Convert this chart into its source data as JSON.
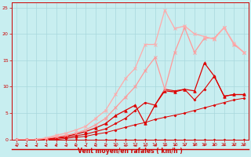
{
  "xlabel": "Vent moyen/en rafales ( km/h )",
  "bg_color": "#c8eef0",
  "grid_color": "#a8d8dc",
  "xlim": [
    -0.5,
    23.5
  ],
  "ylim": [
    0,
    26
  ],
  "xticks": [
    0,
    1,
    2,
    3,
    4,
    5,
    6,
    7,
    8,
    9,
    10,
    11,
    12,
    13,
    14,
    15,
    16,
    17,
    18,
    19,
    20,
    21,
    22,
    23
  ],
  "yticks": [
    0,
    5,
    10,
    15,
    20,
    25
  ],
  "lines": [
    {
      "x": [
        0,
        1,
        2,
        3,
        4,
        5,
        6,
        7,
        8,
        9,
        10,
        11,
        12,
        13,
        14,
        15,
        16,
        17,
        18,
        19,
        20,
        21,
        22,
        23
      ],
      "y": [
        0,
        0,
        0,
        0,
        0,
        0,
        0,
        0,
        0,
        0,
        0,
        0,
        0,
        0,
        0,
        0,
        0,
        0,
        0,
        0,
        0,
        0,
        0,
        0
      ],
      "color": "#dd0000",
      "lw": 0.7,
      "marker": "D",
      "ms": 1.5,
      "mew": 0.5
    },
    {
      "x": [
        0,
        1,
        2,
        3,
        4,
        5,
        6,
        7,
        8,
        9,
        10,
        11,
        12,
        13,
        14,
        15,
        16,
        17,
        18,
        19,
        20,
        21,
        22,
        23
      ],
      "y": [
        0,
        0,
        0,
        0,
        0,
        0.2,
        0.4,
        0.6,
        1.0,
        1.3,
        1.8,
        2.3,
        2.8,
        3.2,
        3.8,
        4.2,
        4.6,
        5.0,
        5.5,
        6.0,
        6.5,
        7.0,
        7.5,
        7.8
      ],
      "color": "#dd0000",
      "lw": 0.7,
      "marker": "D",
      "ms": 1.5,
      "mew": 0.5
    },
    {
      "x": [
        0,
        1,
        2,
        3,
        4,
        5,
        6,
        7,
        8,
        9,
        10,
        11,
        12,
        13,
        14,
        15,
        16,
        17,
        18,
        19,
        20,
        21,
        22,
        23
      ],
      "y": [
        0,
        0,
        0,
        0.1,
        0.2,
        0.4,
        0.7,
        1.0,
        1.5,
        2.0,
        3.0,
        4.0,
        5.5,
        7.0,
        6.5,
        9.5,
        9.2,
        9.5,
        7.5,
        9.5,
        12.0,
        8.2,
        8.5,
        8.5
      ],
      "color": "#dd0000",
      "lw": 0.8,
      "marker": "D",
      "ms": 1.5,
      "mew": 0.5
    },
    {
      "x": [
        0,
        1,
        2,
        3,
        4,
        5,
        6,
        7,
        8,
        9,
        10,
        11,
        12,
        13,
        14,
        15,
        16,
        17,
        18,
        19,
        20,
        21,
        22,
        23
      ],
      "y": [
        0,
        0,
        0,
        0.1,
        0.3,
        0.6,
        1.0,
        1.5,
        2.2,
        3.0,
        4.5,
        5.5,
        6.5,
        3.0,
        6.5,
        9.2,
        9.0,
        9.5,
        9.2,
        14.5,
        12.0,
        8.2,
        8.5,
        8.5
      ],
      "color": "#dd0000",
      "lw": 0.9,
      "marker": "^",
      "ms": 2.5,
      "mew": 0.6
    },
    {
      "x": [
        0,
        1,
        2,
        3,
        4,
        5,
        6,
        7,
        8,
        9,
        10,
        11,
        12,
        13,
        14,
        15,
        16,
        17,
        18,
        19,
        20,
        21,
        22,
        23
      ],
      "y": [
        0,
        0,
        0,
        0.2,
        0.5,
        0.8,
        1.2,
        1.8,
        2.8,
        4.0,
        6.0,
        8.0,
        10.0,
        13.0,
        15.5,
        9.5,
        16.5,
        21.2,
        16.5,
        19.2,
        19.2,
        21.2,
        18.0,
        16.5
      ],
      "color": "#ff9999",
      "lw": 0.9,
      "marker": "x",
      "ms": 3,
      "mew": 0.7
    },
    {
      "x": [
        0,
        1,
        2,
        3,
        4,
        5,
        6,
        7,
        8,
        9,
        10,
        11,
        12,
        13,
        14,
        15,
        16,
        17,
        18,
        19,
        20,
        21,
        22,
        23
      ],
      "y": [
        0,
        0,
        0,
        0.3,
        0.8,
        1.2,
        1.8,
        2.5,
        4.0,
        5.5,
        8.5,
        11.5,
        13.5,
        18.0,
        18.0,
        24.5,
        21.0,
        21.5,
        20.0,
        19.5,
        19.0,
        21.2,
        18.2,
        16.5
      ],
      "color": "#ffaaaa",
      "lw": 0.9,
      "marker": "x",
      "ms": 3,
      "mew": 0.7
    }
  ],
  "arrow_angles": [
    0,
    0,
    0,
    0,
    0,
    0,
    0,
    0,
    0,
    0,
    15,
    20,
    25,
    30,
    40,
    50,
    60,
    70,
    80,
    85,
    90,
    90,
    90,
    90
  ]
}
